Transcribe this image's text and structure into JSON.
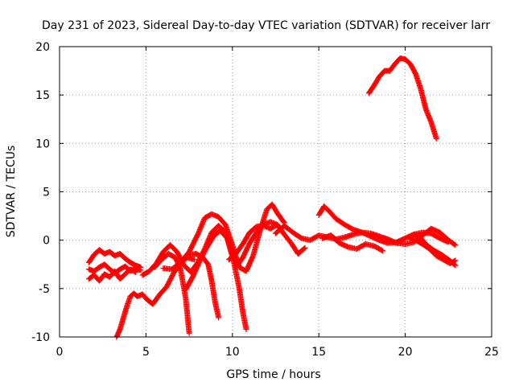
{
  "chart_data": {
    "type": "scatter",
    "title": "Day 231 of 2023, Sidereal Day-to-day VTEC variation (SDTVAR) for receiver larr",
    "xlabel": "GPS time / hours",
    "ylabel": "SDTVAR / TECUs",
    "xlim": [
      0,
      25
    ],
    "ylim": [
      -10,
      20
    ],
    "xticks": [
      0,
      5,
      10,
      15,
      20,
      25
    ],
    "yticks": [
      -10,
      -5,
      0,
      5,
      10,
      15,
      20
    ],
    "xtick_labels": [
      "0",
      "5",
      "10",
      "15",
      "20",
      "25"
    ],
    "ytick_labels": [
      "-10",
      "-5",
      "0",
      "5",
      "10",
      "15",
      "20"
    ],
    "grid": true,
    "marker": "+",
    "color": "#ff0000",
    "series": [
      {
        "name": "s1",
        "x": [
          1.7,
          2.0,
          2.3,
          2.6,
          2.9,
          3.2,
          3.5,
          3.8,
          4.1,
          4.4,
          4.7
        ],
        "y": [
          -2.3,
          -1.5,
          -1.0,
          -1.4,
          -1.2,
          -1.6,
          -1.4,
          -1.9,
          -2.3,
          -2.6,
          -2.8
        ]
      },
      {
        "name": "s2",
        "x": [
          1.7,
          2.0,
          2.3,
          2.6,
          2.9,
          3.2,
          3.5,
          3.8,
          4.1,
          4.4,
          4.7
        ],
        "y": [
          -3.0,
          -3.2,
          -2.8,
          -2.5,
          -3.0,
          -3.4,
          -3.0,
          -2.7,
          -3.2,
          -2.9,
          -3.1
        ]
      },
      {
        "name": "s3",
        "x": [
          1.7,
          2.0,
          2.3,
          2.6,
          2.9,
          3.2,
          3.5,
          3.8,
          4.1,
          4.4
        ],
        "y": [
          -4.0,
          -3.6,
          -4.2,
          -3.5,
          -3.8,
          -3.2,
          -4.0,
          -3.5,
          -3.0,
          -3.3
        ]
      },
      {
        "name": "s4",
        "x": [
          3.3,
          3.5,
          3.7,
          3.9,
          4.1,
          4.3,
          4.5,
          4.8,
          5.1,
          5.4,
          5.8,
          6.2,
          6.6,
          7.0,
          7.4,
          7.8
        ],
        "y": [
          -10.0,
          -9.2,
          -8.0,
          -6.8,
          -5.8,
          -5.5,
          -5.8,
          -5.6,
          -6.2,
          -6.6,
          -5.6,
          -4.8,
          -3.4,
          -2.3,
          -1.8,
          -2.0
        ]
      },
      {
        "name": "s5",
        "x": [
          4.8,
          5.2,
          5.6,
          6.0,
          6.4,
          6.8,
          7.2,
          7.6,
          8.0,
          8.4,
          8.8,
          9.2,
          9.6,
          10.0,
          10.3
        ],
        "y": [
          -3.6,
          -3.2,
          -2.4,
          -1.2,
          -0.5,
          -1.2,
          -2.6,
          -3.3,
          -2.3,
          -0.9,
          0.8,
          1.5,
          0.8,
          -1.5,
          -2.5
        ]
      },
      {
        "name": "s6",
        "x": [
          5.5,
          5.9,
          6.3,
          6.7,
          7.0,
          7.3,
          7.5
        ],
        "y": [
          -2.8,
          -2.0,
          -1.4,
          -1.8,
          -3.0,
          -6.0,
          -9.6
        ]
      },
      {
        "name": "s7",
        "x": [
          6.0,
          6.5,
          7.0,
          7.5,
          8.0,
          8.4,
          8.8,
          9.2,
          9.6,
          10.0,
          10.4,
          10.8,
          11.2,
          11.6,
          12.0,
          12.3,
          12.6,
          13.0
        ],
        "y": [
          -2.9,
          -3.0,
          -2.3,
          -1.2,
          0.6,
          2.3,
          2.7,
          2.4,
          1.6,
          -0.5,
          -2.8,
          -3.2,
          -1.6,
          1.0,
          3.2,
          3.7,
          2.8,
          1.8
        ]
      },
      {
        "name": "s8",
        "x": [
          7.5,
          7.9,
          8.3,
          8.6,
          8.8,
          9.0,
          9.2
        ],
        "y": [
          -1.5,
          -1.4,
          -1.8,
          -2.5,
          -4.2,
          -6.4,
          -8.0
        ]
      },
      {
        "name": "s9",
        "x": [
          7.3,
          7.7,
          8.1,
          8.5,
          8.9,
          9.3,
          9.7,
          10.1,
          10.4,
          10.6,
          10.8
        ],
        "y": [
          -5.1,
          -3.8,
          -2.2,
          -0.8,
          0.4,
          1.0,
          0.2,
          -2.4,
          -5.0,
          -7.4,
          -9.2
        ]
      },
      {
        "name": "s10",
        "x": [
          9.8,
          10.2,
          10.6,
          11.0,
          11.4,
          11.8,
          12.2,
          12.6,
          13.0,
          13.4,
          13.8,
          14.2
        ],
        "y": [
          -2.0,
          -1.4,
          -0.4,
          0.8,
          1.4,
          1.5,
          1.2,
          1.6,
          0.6,
          -0.3,
          -1.4,
          -0.8
        ]
      },
      {
        "name": "s11",
        "x": [
          10.2,
          10.6,
          11.0,
          11.4,
          11.8,
          12.2,
          12.6
        ],
        "y": [
          -2.8,
          -1.8,
          -0.3,
          0.8,
          1.6,
          1.9,
          1.6
        ]
      },
      {
        "name": "s12",
        "x": [
          12.5,
          13.0,
          13.5,
          14.0,
          14.5,
          15.0,
          15.5,
          16.0,
          16.5,
          17.0,
          17.5,
          18.0,
          18.5,
          19.0,
          19.5,
          20.0,
          20.5,
          21.0,
          21.5,
          22.0,
          22.5
        ],
        "y": [
          0.7,
          1.5,
          0.8,
          0.2,
          0.0,
          0.5,
          0.3,
          0.1,
          0.3,
          0.6,
          0.8,
          0.4,
          0.0,
          -0.3,
          -0.2,
          0.2,
          0.6,
          0.8,
          0.7,
          0.2,
          -0.2
        ]
      },
      {
        "name": "s13",
        "x": [
          15.0,
          15.3,
          15.6,
          16.0,
          16.5,
          17.0,
          17.5,
          18.0,
          18.5,
          19.0,
          19.5,
          20.0,
          20.5,
          21.0,
          21.5,
          22.0,
          22.5,
          22.9
        ],
        "y": [
          2.6,
          3.5,
          3.0,
          2.2,
          1.6,
          1.1,
          0.8,
          0.7,
          0.4,
          0.1,
          -0.3,
          -0.4,
          -0.2,
          0.5,
          1.2,
          0.8,
          0.0,
          -0.5
        ]
      },
      {
        "name": "s14",
        "x": [
          15.2,
          15.7,
          16.2,
          16.7,
          17.2,
          17.7,
          18.2,
          18.7
        ],
        "y": [
          0.2,
          0.5,
          -0.3,
          -0.7,
          -0.9,
          -0.4,
          -0.6,
          -1.1
        ]
      },
      {
        "name": "s15",
        "x": [
          20.2,
          20.6,
          21.0,
          21.4,
          21.8,
          22.2,
          22.6,
          22.9
        ],
        "y": [
          0.3,
          0.0,
          -0.4,
          -0.9,
          -1.6,
          -2.0,
          -2.4,
          -2.1
        ]
      },
      {
        "name": "s16",
        "x": [
          20.5,
          20.9,
          21.3,
          21.7,
          22.1,
          22.5,
          22.9
        ],
        "y": [
          0.6,
          0.2,
          -0.6,
          -1.1,
          -1.5,
          -2.0,
          -2.6
        ]
      },
      {
        "name": "s17",
        "x": [
          17.9,
          18.2,
          18.5,
          18.8,
          19.1,
          19.4,
          19.7,
          20.0,
          20.3,
          20.6,
          20.9,
          21.2,
          21.5,
          21.8
        ],
        "y": [
          15.2,
          16.0,
          16.9,
          17.5,
          17.5,
          18.2,
          18.8,
          18.7,
          18.2,
          17.2,
          15.6,
          13.5,
          12.2,
          10.5
        ]
      }
    ]
  }
}
